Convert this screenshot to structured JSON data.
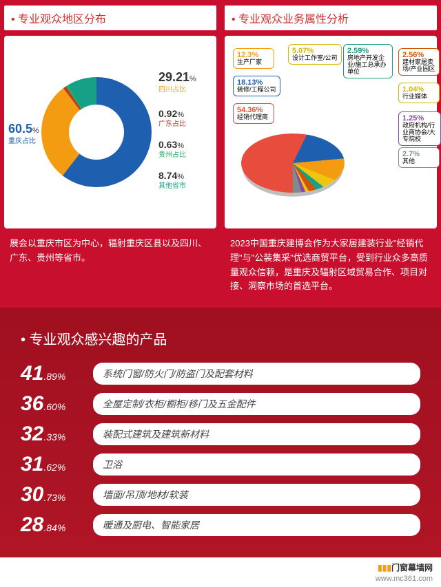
{
  "section1": {
    "title": "专业观众地区分布",
    "donut": {
      "segments": [
        {
          "label": "重庆占比",
          "value": 60.5,
          "color": "#1f5fb0",
          "startDeg": 0
        },
        {
          "label": "四川占比",
          "value": 29.21,
          "color": "#f39c12",
          "startDeg": 217.8
        },
        {
          "label": "广东占比",
          "value": 0.92,
          "color": "#c0392b",
          "startDeg": 322.96
        },
        {
          "label": "贵州占比",
          "value": 0.63,
          "color": "#27ae60",
          "startDeg": 326.27
        },
        {
          "label": "其他省市",
          "value": 8.74,
          "color": "#16a085",
          "startDeg": 328.54
        }
      ]
    },
    "desc": "展会以重庆市区为中心，辐射重庆区县以及四川、广东、贵州等省市。"
  },
  "section2": {
    "title": "专业观众业务属性分析",
    "pie": {
      "segments": [
        {
          "label": "经销代理商",
          "value": 54.36,
          "color": "#e74c3c"
        },
        {
          "label": "装修/工程公司",
          "value": 18.13,
          "color": "#1f5fb0"
        },
        {
          "label": "生产厂家",
          "value": 12.3,
          "color": "#f39c12"
        },
        {
          "label": "设计工作室/公司",
          "value": 5.07,
          "color": "#f1c40f"
        },
        {
          "label": "房地产开发企业/施工总承办单位",
          "value": 2.59,
          "color": "#16a085"
        },
        {
          "label": "建材家居卖场/产业园区",
          "value": 2.56,
          "color": "#d35400"
        },
        {
          "label": "行业媒体",
          "value": 1.04,
          "color": "#f1c40f"
        },
        {
          "label": "政府机构/行业商协会/大专院校",
          "value": 1.25,
          "color": "#8e44ad"
        },
        {
          "label": "其他",
          "value": 2.7,
          "color": "#7f8c8d"
        }
      ]
    },
    "desc": "2023中国重庆建博会作为大家居建装行业\"经销代理\"与\"公装集采\"优选商贸平台，受到行业众多高质量观众信赖，是重庆及辐射区域贸易合作、项目对接、洞察市场的首选平台。"
  },
  "section3": {
    "title": "专业观众感兴趣的产品",
    "rows": [
      {
        "big": "41",
        "small": ".89%",
        "label": "系统门窗/防火门/防盗门及配套材料"
      },
      {
        "big": "36",
        "small": ".60%",
        "label": "全屋定制/衣柜/橱柜/移门及五金配件"
      },
      {
        "big": "32",
        "small": ".33%",
        "label": "装配式建筑及建筑新材料"
      },
      {
        "big": "31",
        "small": ".62%",
        "label": "卫浴"
      },
      {
        "big": "30",
        "small": ".73%",
        "label": "墙面/吊顶/地材/软装"
      },
      {
        "big": "28",
        "small": ".84%",
        "label": "暖通及厨电、智能家居"
      }
    ]
  },
  "watermark": {
    "brand": "门窗幕墙网",
    "url": "www.mc361.com",
    "accent": "#f39c12"
  }
}
